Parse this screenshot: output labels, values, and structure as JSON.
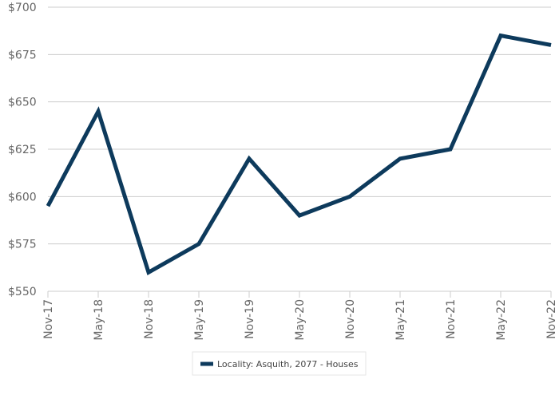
{
  "chart_data": {
    "type": "line",
    "categories": [
      "Nov-17",
      "May-18",
      "Nov-18",
      "May-19",
      "Nov-19",
      "May-20",
      "Nov-20",
      "May-21",
      "Nov-21",
      "May-22",
      "Nov-22"
    ],
    "series": [
      {
        "name": "Locality: Asquith, 2077 - Houses",
        "color": "#0d3a5c",
        "values": [
          595,
          645,
          560,
          575,
          620,
          590,
          600,
          620,
          625,
          685,
          680
        ]
      }
    ],
    "ylim": [
      550,
      700
    ],
    "yticks": [
      550,
      575,
      600,
      625,
      650,
      675,
      700
    ],
    "ytick_labels": [
      "$550",
      "$575",
      "$600",
      "$625",
      "$650",
      "$675",
      "$700"
    ],
    "grid": true,
    "legend_position": "bottom-center",
    "title": "",
    "xlabel": "",
    "ylabel": ""
  }
}
